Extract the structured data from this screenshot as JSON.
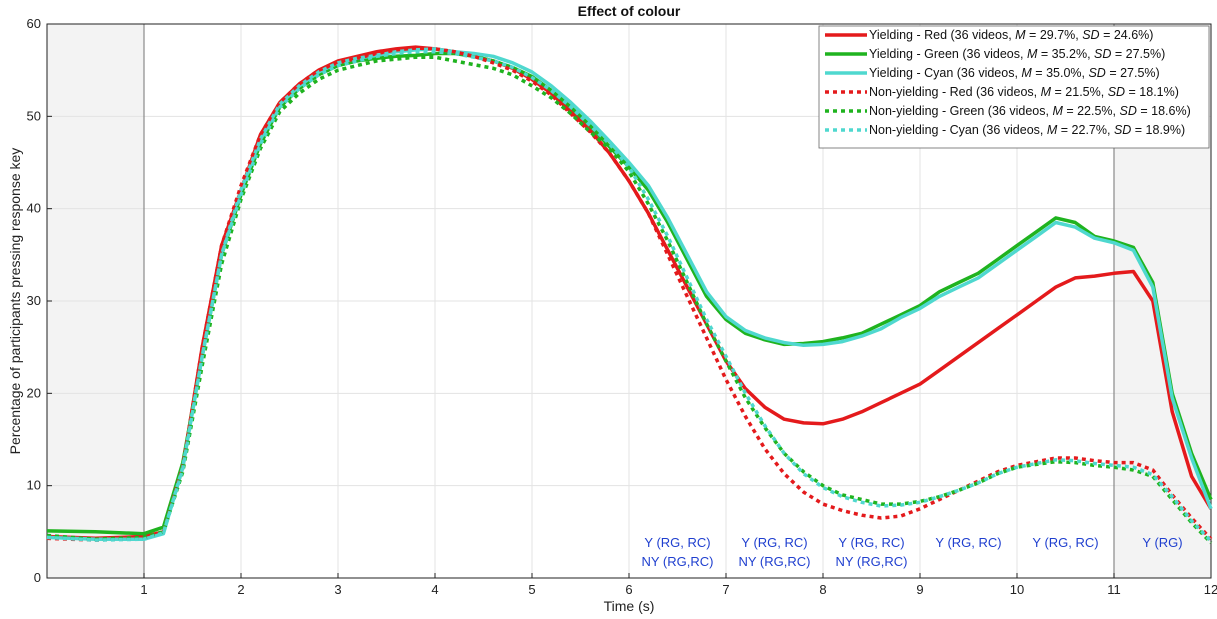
{
  "chart_data": {
    "type": "line",
    "title": "Effect of colour",
    "xlabel": "Time (s)",
    "ylabel": "Percentage of participants pressing response key",
    "xlim": [
      0,
      12
    ],
    "ylim": [
      0,
      60
    ],
    "xticks": [
      1,
      2,
      3,
      4,
      5,
      6,
      7,
      8,
      9,
      10,
      11,
      12
    ],
    "yticks": [
      0,
      10,
      20,
      30,
      40,
      50,
      60
    ],
    "grid": true,
    "legend_position": "top-right",
    "shaded_regions": [
      [
        0,
        1
      ],
      [
        11,
        12
      ]
    ],
    "vertical_lines": [
      1,
      11
    ],
    "series": [
      {
        "name": "Yielding - Red",
        "legend_label": "Yielding - Red (36 videos, M = 29.7%, SD = 24.6%)",
        "legend_parts": [
          "Yielding - Red (36 videos, ",
          "M",
          " = 29.7%, ",
          "SD",
          " = 24.6%)"
        ],
        "color": "#e41a1c",
        "style": "solid",
        "x": [
          0,
          0.5,
          1,
          1.2,
          1.4,
          1.6,
          1.8,
          2,
          2.2,
          2.4,
          2.6,
          2.8,
          3,
          3.2,
          3.4,
          3.6,
          3.8,
          4,
          4.2,
          4.4,
          4.6,
          4.8,
          5,
          5.2,
          5.4,
          5.6,
          5.8,
          6,
          6.2,
          6.4,
          6.6,
          6.8,
          7,
          7.2,
          7.4,
          7.6,
          7.8,
          8,
          8.2,
          8.4,
          8.6,
          8.8,
          9,
          9.2,
          9.4,
          9.6,
          9.8,
          10,
          10.2,
          10.4,
          10.6,
          10.8,
          11,
          11.2,
          11.4,
          11.6,
          11.8,
          12
        ],
        "y": [
          4.5,
          4.3,
          4.5,
          5,
          12,
          25,
          36,
          42,
          48,
          51.5,
          53.5,
          55,
          56,
          56.5,
          57,
          57.3,
          57.5,
          57.3,
          57,
          56.5,
          56,
          55.2,
          54,
          52.5,
          50.5,
          48.5,
          46,
          43,
          39.5,
          35.5,
          31.5,
          27.5,
          23.5,
          20.5,
          18.5,
          17.2,
          16.8,
          16.7,
          17.2,
          18,
          19,
          20,
          21,
          22.5,
          24,
          25.5,
          27,
          28.5,
          30,
          31.5,
          32.5,
          32.7,
          33,
          33.2,
          30,
          18,
          11,
          7.5
        ]
      },
      {
        "name": "Yielding - Green",
        "legend_label": "Yielding - Green (36 videos, M = 35.2%, SD = 27.5%)",
        "legend_parts": [
          "Yielding - Green (36 videos, ",
          "M",
          " = 35.2%, ",
          "SD",
          " = 27.5%)"
        ],
        "color": "#1fb31f",
        "style": "solid",
        "x": [
          0,
          0.5,
          1,
          1.2,
          1.4,
          1.6,
          1.8,
          2,
          2.2,
          2.4,
          2.6,
          2.8,
          3,
          3.2,
          3.4,
          3.6,
          3.8,
          4,
          4.2,
          4.4,
          4.6,
          4.8,
          5,
          5.2,
          5.4,
          5.6,
          5.8,
          6,
          6.2,
          6.4,
          6.6,
          6.8,
          7,
          7.2,
          7.4,
          7.6,
          7.8,
          8,
          8.2,
          8.4,
          8.6,
          8.8,
          9,
          9.2,
          9.4,
          9.6,
          9.8,
          10,
          10.2,
          10.4,
          10.6,
          10.8,
          11,
          11.2,
          11.4,
          11.6,
          11.8,
          12
        ],
        "y": [
          5.1,
          5,
          4.8,
          5.5,
          12.5,
          24,
          35,
          41.5,
          47,
          51,
          53,
          54.5,
          55.5,
          56,
          56.3,
          56.5,
          56.6,
          56.8,
          56.8,
          56.5,
          56,
          55.3,
          54.3,
          52.8,
          51,
          49,
          46.7,
          44.5,
          42,
          38.5,
          34.5,
          30.5,
          28,
          26.5,
          25.8,
          25.3,
          25.4,
          25.6,
          26,
          26.5,
          27.5,
          28.5,
          29.5,
          31,
          32,
          33,
          34.5,
          36,
          37.5,
          39,
          38.5,
          37,
          36.5,
          35.8,
          32,
          20,
          13.5,
          8.5
        ]
      },
      {
        "name": "Yielding - Cyan",
        "legend_label": "Yielding - Cyan (36 videos, M = 35.0%, SD = 27.5%)",
        "legend_parts": [
          "Yielding - Cyan (36 videos, ",
          "M",
          " = 35.0%, ",
          "SD",
          " = 27.5%)"
        ],
        "color": "#4fd8cf",
        "style": "solid",
        "x": [
          0,
          0.5,
          1,
          1.2,
          1.4,
          1.6,
          1.8,
          2,
          2.2,
          2.4,
          2.6,
          2.8,
          3,
          3.2,
          3.4,
          3.6,
          3.8,
          4,
          4.2,
          4.4,
          4.6,
          4.8,
          5,
          5.2,
          5.4,
          5.6,
          5.8,
          6,
          6.2,
          6.4,
          6.6,
          6.8,
          7,
          7.2,
          7.4,
          7.6,
          7.8,
          8,
          8.2,
          8.4,
          8.6,
          8.8,
          9,
          9.2,
          9.4,
          9.6,
          9.8,
          10,
          10.2,
          10.4,
          10.6,
          10.8,
          11,
          11.2,
          11.4,
          11.6,
          11.8,
          12
        ],
        "y": [
          4.4,
          4.2,
          4.2,
          4.8,
          12,
          24,
          35,
          42,
          47.5,
          51.3,
          53.3,
          54.8,
          55.8,
          56.3,
          56.6,
          57,
          57.2,
          57.3,
          57,
          56.8,
          56.5,
          55.8,
          54.8,
          53.3,
          51.5,
          49.5,
          47.3,
          45,
          42.5,
          39,
          35,
          31,
          28.3,
          26.8,
          26,
          25.5,
          25.2,
          25.3,
          25.6,
          26.2,
          27,
          28.2,
          29.2,
          30.5,
          31.5,
          32.5,
          34,
          35.5,
          37,
          38.5,
          38,
          36.8,
          36.3,
          35.5,
          31.5,
          19.5,
          13,
          7.5
        ]
      },
      {
        "name": "Non-yielding - Red",
        "legend_label": "Non-yielding - Red (36 videos, M = 21.5%, SD = 18.1%)",
        "legend_parts": [
          "Non-yielding - Red (36 videos, ",
          "M",
          " = 21.5%, ",
          "SD",
          " = 18.1%)"
        ],
        "color": "#e41a1c",
        "style": "dotted",
        "x": [
          0,
          0.5,
          1,
          1.2,
          1.4,
          1.6,
          1.8,
          2,
          2.2,
          2.4,
          2.6,
          2.8,
          3,
          3.2,
          3.4,
          3.6,
          3.8,
          4,
          4.2,
          4.4,
          4.6,
          4.8,
          5,
          5.2,
          5.4,
          5.6,
          5.8,
          6,
          6.2,
          6.4,
          6.6,
          6.8,
          7,
          7.2,
          7.4,
          7.6,
          7.8,
          8,
          8.2,
          8.4,
          8.6,
          8.8,
          9,
          9.2,
          9.4,
          9.6,
          9.8,
          10,
          10.2,
          10.4,
          10.6,
          10.8,
          11,
          11.2,
          11.4,
          11.6,
          11.8,
          12
        ],
        "y": [
          4.3,
          4.1,
          4.3,
          5,
          12,
          25,
          36,
          42.5,
          48,
          51.5,
          53.5,
          55,
          55.8,
          56.3,
          56.8,
          57.2,
          57.4,
          57.3,
          57,
          56.5,
          55.8,
          55,
          53.8,
          52.3,
          50.3,
          48.3,
          46,
          43,
          39.5,
          35,
          30.5,
          26,
          21.5,
          17.5,
          14,
          11.3,
          9.3,
          8,
          7.3,
          6.8,
          6.5,
          6.7,
          7.5,
          8.5,
          9.5,
          10.5,
          11.5,
          12.2,
          12.6,
          13,
          13,
          12.7,
          12.5,
          12.5,
          11.7,
          9,
          6.5,
          4.2
        ]
      },
      {
        "name": "Non-yielding - Green",
        "legend_label": "Non-yielding - Green (36 videos, M = 22.5%, SD = 18.6%)",
        "legend_parts": [
          "Non-yielding - Green (36 videos, ",
          "M",
          " = 22.5%, ",
          "SD",
          " = 18.6%)"
        ],
        "color": "#1fb31f",
        "style": "dotted",
        "x": [
          0,
          0.5,
          1,
          1.2,
          1.4,
          1.6,
          1.8,
          2,
          2.2,
          2.4,
          2.6,
          2.8,
          3,
          3.2,
          3.4,
          3.6,
          3.8,
          4,
          4.2,
          4.4,
          4.6,
          4.8,
          5,
          5.2,
          5.4,
          5.6,
          5.8,
          6,
          6.2,
          6.4,
          6.6,
          6.8,
          7,
          7.2,
          7.4,
          7.6,
          7.8,
          8,
          8.2,
          8.4,
          8.6,
          8.8,
          9,
          9.2,
          9.4,
          9.6,
          9.8,
          10,
          10.2,
          10.4,
          10.6,
          10.8,
          11,
          11.2,
          11.4,
          11.6,
          11.8,
          12
        ],
        "y": [
          4.6,
          4.2,
          4.4,
          5,
          11.5,
          23,
          34,
          41,
          46.5,
          50.5,
          52.5,
          54,
          55,
          55.5,
          56,
          56.2,
          56.4,
          56.4,
          56,
          55.6,
          55.2,
          54.5,
          53.3,
          52,
          50.3,
          48.3,
          46.5,
          44,
          40.5,
          36.5,
          32,
          27.5,
          23.5,
          19.5,
          16.3,
          13.5,
          11.5,
          10,
          9,
          8.5,
          8,
          8,
          8.3,
          8.8,
          9.5,
          10.3,
          11.3,
          12,
          12.3,
          12.6,
          12.5,
          12.2,
          12,
          11.7,
          11,
          8.5,
          6,
          3.8
        ]
      },
      {
        "name": "Non-yielding - Cyan",
        "legend_label": "Non-yielding - Cyan (36 videos, M = 22.7%, SD = 18.9%)",
        "legend_parts": [
          "Non-yielding - Cyan (36 videos, ",
          "M",
          " = 22.7%, ",
          "SD",
          " = 18.9%)"
        ],
        "color": "#4fd8cf",
        "style": "dotted",
        "x": [
          0,
          0.5,
          1,
          1.2,
          1.4,
          1.6,
          1.8,
          2,
          2.2,
          2.4,
          2.6,
          2.8,
          3,
          3.2,
          3.4,
          3.6,
          3.8,
          4,
          4.2,
          4.4,
          4.6,
          4.8,
          5,
          5.2,
          5.4,
          5.6,
          5.8,
          6,
          6.2,
          6.4,
          6.6,
          6.8,
          7,
          7.2,
          7.4,
          7.6,
          7.8,
          8,
          8.2,
          8.4,
          8.6,
          8.8,
          9,
          9.2,
          9.4,
          9.6,
          9.8,
          10,
          10.2,
          10.4,
          10.6,
          10.8,
          11,
          11.2,
          11.4,
          11.6,
          11.8,
          12
        ],
        "y": [
          4.4,
          4.1,
          4.2,
          4.9,
          11.8,
          24,
          35,
          41.5,
          47,
          51,
          53,
          54.5,
          55.5,
          56,
          56.5,
          56.8,
          57,
          57,
          56.8,
          56.4,
          56,
          55.3,
          54.2,
          52.8,
          51,
          49,
          47,
          44.5,
          41,
          37,
          32.5,
          28,
          24,
          20,
          16.5,
          13.5,
          11.3,
          9.8,
          8.8,
          8.2,
          7.8,
          7.9,
          8.2,
          8.8,
          9.5,
          10.3,
          11.3,
          12,
          12.4,
          12.8,
          12.7,
          12.4,
          12.2,
          12,
          11.2,
          8.8,
          6.2,
          4
        ]
      }
    ],
    "annotations": [
      {
        "x": 6.5,
        "lines": [
          "Y (RG, RC)",
          "NY (RG,RC)"
        ]
      },
      {
        "x": 7.5,
        "lines": [
          "Y (RG, RC)",
          "NY (RG,RC)"
        ]
      },
      {
        "x": 8.5,
        "lines": [
          "Y (RG, RC)",
          "NY (RG,RC)"
        ]
      },
      {
        "x": 9.5,
        "lines": [
          "Y (RG, RC)"
        ]
      },
      {
        "x": 10.5,
        "lines": [
          "Y (RG, RC)"
        ]
      },
      {
        "x": 11.5,
        "lines": [
          "Y (RG)"
        ]
      }
    ]
  }
}
